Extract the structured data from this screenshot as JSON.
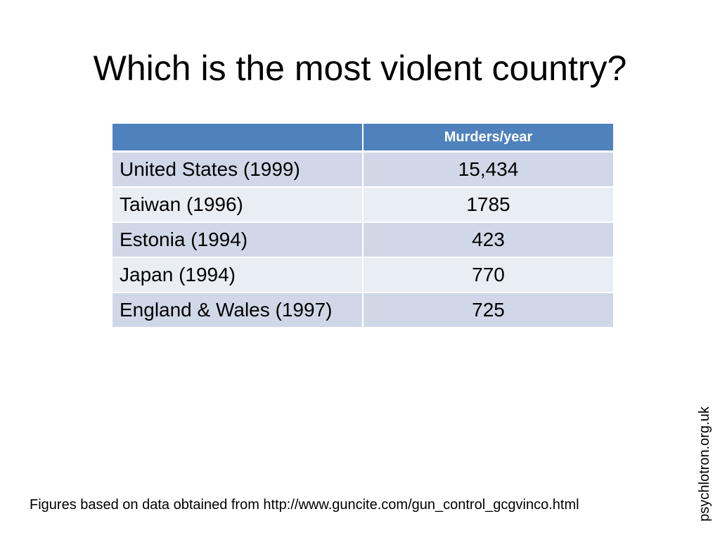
{
  "slide": {
    "title": "Which is the most violent country?",
    "table": {
      "headers": [
        "",
        "Murders/year"
      ],
      "rows": [
        [
          "United States (1999)",
          "15,434"
        ],
        [
          "Taiwan (1996)",
          "1785"
        ],
        [
          "Estonia (1994)",
          "423"
        ],
        [
          "Japan (1994)",
          "770"
        ],
        [
          "England & Wales (1997)",
          "725"
        ]
      ]
    },
    "source_note": "Figures based on data obtained from http://www.guncite.com/gun_control_gcgvinco.html",
    "site_label": "psychlotron.org.uk"
  },
  "colors": {
    "header_bg": "#4f81bd",
    "row_odd_bg": "#d0d8e8",
    "row_even_bg": "#e9edf4"
  }
}
